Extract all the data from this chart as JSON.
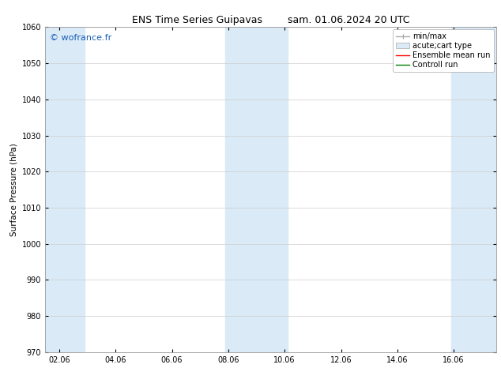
{
  "title_left": "ENS Time Series Guipavas",
  "title_right": "sam. 01.06.2024 20 UTC",
  "ylabel": "Surface Pressure (hPa)",
  "ylim": [
    970,
    1060
  ],
  "yticks": [
    970,
    980,
    990,
    1000,
    1010,
    1020,
    1030,
    1040,
    1050,
    1060
  ],
  "xtick_labels": [
    "02.06",
    "04.06",
    "06.06",
    "08.06",
    "10.06",
    "12.06",
    "14.06",
    "16.06"
  ],
  "xtick_positions": [
    0,
    2,
    4,
    6,
    8,
    10,
    12,
    14
  ],
  "xlim": [
    -0.5,
    15.5
  ],
  "shaded_regions": [
    {
      "xmin": -0.5,
      "xmax": 0.9,
      "color": "#daeaf7"
    },
    {
      "xmin": 5.9,
      "xmax": 8.1,
      "color": "#daeaf7"
    },
    {
      "xmin": 13.9,
      "xmax": 15.5,
      "color": "#daeaf7"
    }
  ],
  "watermark_text": "© wofrance.fr",
  "watermark_color": "#1a5fb4",
  "background_color": "#ffffff",
  "grid_color": "#cccccc",
  "title_fontsize": 9,
  "label_fontsize": 7.5,
  "tick_fontsize": 7,
  "legend_fontsize": 7
}
